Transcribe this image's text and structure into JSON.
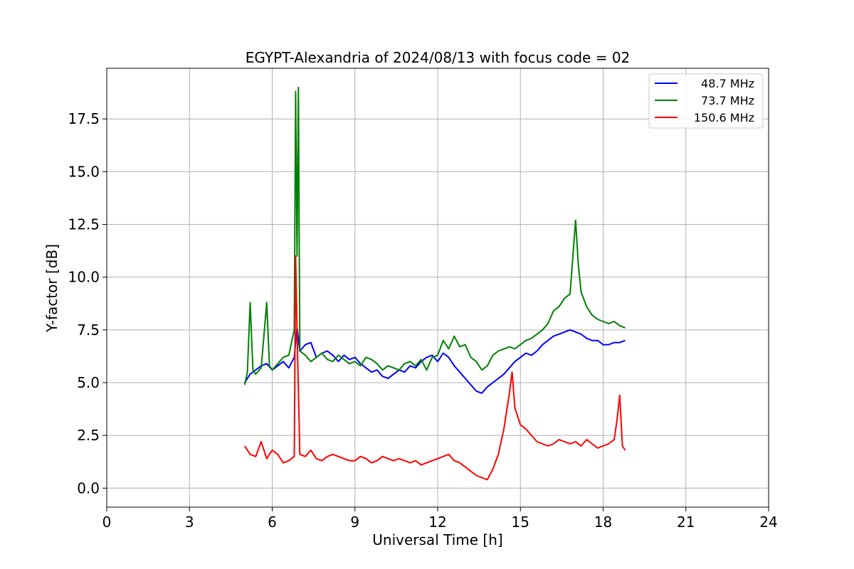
{
  "chart_data": {
    "type": "line",
    "title": "EGYPT-Alexandria of 2024/08/13 with focus code = 02",
    "xlabel": "Universal Time [h]",
    "ylabel": "Y-factor [dB]",
    "xlim": [
      0,
      24
    ],
    "ylim": [
      -0.9,
      19.9
    ],
    "xticks": [
      0,
      3,
      6,
      9,
      12,
      15,
      18,
      21,
      24
    ],
    "xtick_labels": [
      "0",
      "3",
      "6",
      "9",
      "12",
      "15",
      "18",
      "21",
      "24"
    ],
    "yticks": [
      0,
      2.5,
      5,
      7.5,
      10,
      12.5,
      15,
      17.5
    ],
    "ytick_labels": [
      "0.0",
      "2.5",
      "5.0",
      "7.5",
      "10.0",
      "12.5",
      "15.0",
      "17.5"
    ],
    "grid": true,
    "legend_position": "top-right",
    "series": [
      {
        "name": "48.7 MHz",
        "color": "#0000ff",
        "x": [
          5.0,
          5.2,
          5.4,
          5.6,
          5.8,
          6.0,
          6.2,
          6.4,
          6.6,
          6.8,
          6.9,
          7.0,
          7.2,
          7.4,
          7.6,
          7.8,
          8.0,
          8.2,
          8.4,
          8.6,
          8.8,
          9.0,
          9.2,
          9.4,
          9.6,
          9.8,
          10.0,
          10.2,
          10.4,
          10.6,
          10.8,
          11.0,
          11.2,
          11.4,
          11.6,
          11.8,
          12.0,
          12.2,
          12.4,
          12.6,
          12.8,
          13.0,
          13.2,
          13.4,
          13.6,
          13.8,
          14.0,
          14.2,
          14.4,
          14.6,
          14.8,
          15.0,
          15.2,
          15.4,
          15.6,
          15.8,
          16.0,
          16.2,
          16.4,
          16.6,
          16.8,
          17.0,
          17.2,
          17.4,
          17.6,
          17.8,
          18.0,
          18.2,
          18.4,
          18.6,
          18.8
        ],
        "values": [
          5.0,
          5.4,
          5.6,
          5.8,
          5.9,
          5.6,
          5.8,
          6.0,
          5.7,
          6.2,
          7.6,
          6.5,
          6.8,
          6.9,
          6.2,
          6.4,
          6.5,
          6.3,
          6.0,
          6.3,
          6.1,
          6.2,
          5.9,
          5.7,
          5.5,
          5.6,
          5.3,
          5.2,
          5.4,
          5.6,
          5.5,
          5.8,
          5.7,
          6.0,
          6.2,
          6.3,
          6.0,
          6.4,
          6.2,
          5.8,
          5.5,
          5.2,
          4.9,
          4.6,
          4.5,
          4.8,
          5.0,
          5.2,
          5.4,
          5.7,
          6.0,
          6.2,
          6.4,
          6.3,
          6.5,
          6.8,
          7.0,
          7.2,
          7.3,
          7.4,
          7.5,
          7.4,
          7.3,
          7.1,
          7.0,
          7.0,
          6.8,
          6.8,
          6.9,
          6.9,
          7.0
        ]
      },
      {
        "name": "73.7 MHz",
        "color": "#008000",
        "x": [
          5.0,
          5.1,
          5.2,
          5.3,
          5.4,
          5.6,
          5.8,
          5.9,
          6.0,
          6.2,
          6.4,
          6.6,
          6.8,
          6.85,
          6.9,
          6.95,
          7.0,
          7.2,
          7.4,
          7.6,
          7.8,
          8.0,
          8.2,
          8.4,
          8.6,
          8.8,
          9.0,
          9.2,
          9.4,
          9.6,
          9.8,
          10.0,
          10.2,
          10.4,
          10.6,
          10.8,
          11.0,
          11.2,
          11.4,
          11.6,
          11.8,
          12.0,
          12.2,
          12.4,
          12.6,
          12.8,
          13.0,
          13.2,
          13.4,
          13.6,
          13.8,
          14.0,
          14.2,
          14.4,
          14.6,
          14.8,
          15.0,
          15.2,
          15.4,
          15.6,
          15.8,
          16.0,
          16.2,
          16.4,
          16.6,
          16.8,
          17.0,
          17.1,
          17.2,
          17.4,
          17.6,
          17.8,
          18.0,
          18.2,
          18.4,
          18.6,
          18.8
        ],
        "values": [
          4.9,
          5.5,
          8.8,
          5.6,
          5.4,
          5.7,
          8.8,
          5.8,
          5.6,
          5.9,
          6.2,
          6.3,
          7.5,
          18.8,
          11.0,
          19.0,
          6.5,
          6.3,
          6.0,
          6.2,
          6.4,
          6.1,
          6.0,
          6.3,
          6.1,
          5.9,
          6.0,
          5.8,
          6.2,
          6.1,
          5.9,
          5.6,
          5.8,
          5.7,
          5.6,
          5.9,
          6.0,
          5.8,
          6.1,
          5.6,
          6.2,
          6.3,
          7.0,
          6.6,
          7.2,
          6.7,
          6.8,
          6.2,
          6.0,
          5.6,
          5.8,
          6.3,
          6.5,
          6.6,
          6.7,
          6.6,
          6.8,
          7.0,
          7.1,
          7.3,
          7.5,
          7.8,
          8.4,
          8.6,
          9.0,
          9.2,
          12.7,
          10.6,
          9.3,
          8.6,
          8.2,
          8.0,
          7.9,
          7.8,
          7.9,
          7.7,
          7.6
        ]
      },
      {
        "name": "150.6 MHz",
        "color": "#ff0000",
        "x": [
          5.0,
          5.2,
          5.4,
          5.6,
          5.8,
          6.0,
          6.2,
          6.4,
          6.6,
          6.8,
          6.85,
          6.9,
          7.0,
          7.2,
          7.4,
          7.6,
          7.8,
          8.0,
          8.2,
          8.4,
          8.6,
          8.8,
          9.0,
          9.2,
          9.4,
          9.6,
          9.8,
          10.0,
          10.2,
          10.4,
          10.6,
          10.8,
          11.0,
          11.2,
          11.4,
          11.6,
          11.8,
          12.0,
          12.2,
          12.4,
          12.6,
          12.8,
          13.0,
          13.2,
          13.4,
          13.6,
          13.8,
          14.0,
          14.2,
          14.4,
          14.6,
          14.7,
          14.8,
          15.0,
          15.2,
          15.4,
          15.6,
          15.8,
          16.0,
          16.2,
          16.4,
          16.6,
          16.8,
          17.0,
          17.2,
          17.4,
          17.6,
          17.8,
          18.0,
          18.2,
          18.4,
          18.5,
          18.6,
          18.7,
          18.8
        ],
        "values": [
          2.0,
          1.6,
          1.5,
          2.2,
          1.4,
          1.8,
          1.6,
          1.2,
          1.3,
          1.5,
          11.0,
          7.5,
          1.6,
          1.5,
          1.8,
          1.4,
          1.3,
          1.5,
          1.6,
          1.5,
          1.4,
          1.3,
          1.3,
          1.5,
          1.4,
          1.2,
          1.3,
          1.5,
          1.4,
          1.3,
          1.4,
          1.3,
          1.2,
          1.3,
          1.1,
          1.2,
          1.3,
          1.4,
          1.5,
          1.6,
          1.3,
          1.2,
          1.0,
          0.8,
          0.6,
          0.5,
          0.4,
          0.9,
          1.6,
          2.8,
          4.5,
          5.5,
          3.8,
          3.0,
          2.8,
          2.5,
          2.2,
          2.1,
          2.0,
          2.1,
          2.3,
          2.2,
          2.1,
          2.2,
          2.0,
          2.3,
          2.1,
          1.9,
          2.0,
          2.1,
          2.3,
          3.2,
          4.4,
          2.0,
          1.8
        ]
      }
    ]
  }
}
